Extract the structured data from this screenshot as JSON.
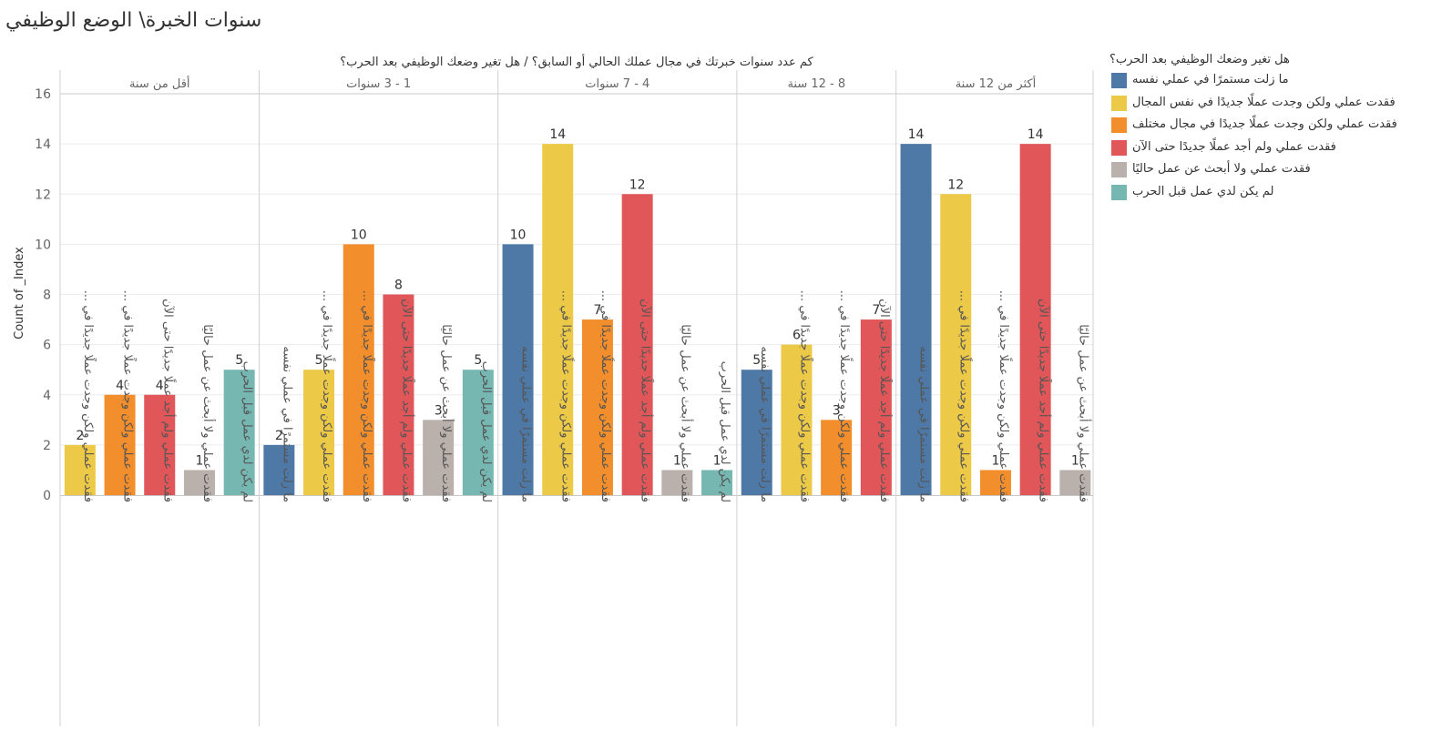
{
  "title": "سنوات الخبرة\\ الوضع الوظيفي",
  "chart_data": {
    "type": "bar",
    "title": "كم عدد سنوات خبرتك في مجال عملك الحالي أو السابق؟  /  هل تغير وضعك الوظيفي بعد الحرب؟",
    "ylabel": "Count of _Index",
    "ylim": [
      0,
      16
    ],
    "yticks": [
      0,
      2,
      4,
      6,
      8,
      10,
      12,
      14,
      16
    ],
    "grid": true,
    "legend_title": "هل تغير وضعك الوظيفي بعد الحرب؟",
    "legend_position": "right",
    "series": [
      {
        "name": "ما زلت مستمرًا في عملي نفسه",
        "color": "#4e79a7"
      },
      {
        "name": "فقدت عملي ولكن وجدت عملًا جديدًا في نفس المجال",
        "color": "#edc948"
      },
      {
        "name": "فقدت عملي ولكن وجدت عملًا جديدًا في مجال مختلف",
        "color": "#f28e2b"
      },
      {
        "name": "فقدت عملي ولم أجد عملًا جديدًا حتى الآن",
        "color": "#e15759"
      },
      {
        "name": "فقدت عملي ولا أبحث عن عمل حاليًا",
        "color": "#bab0ac"
      },
      {
        "name": "لم يكن لدي عمل قبل الحرب",
        "color": "#76b7b2"
      }
    ],
    "groups": [
      {
        "name": "أقل من سنة",
        "bars": [
          {
            "label": "فقدت عملي ولكن وجدت عملًا جديدًا في ...",
            "series": 1,
            "value": 2
          },
          {
            "label": "فقدت عملي ولكن وجدت عملًا جديدًا في ...",
            "series": 2,
            "value": 4
          },
          {
            "label": "فقدت عملي ولم أجد عملًا جديدًا حتى الآن",
            "series": 3,
            "value": 4
          },
          {
            "label": "فقدت عملي ولا أبحث عن عمل حاليًا",
            "series": 4,
            "value": 1
          },
          {
            "label": "لم يكن لدي عمل قبل الحرب",
            "series": 5,
            "value": 5
          }
        ]
      },
      {
        "name": "1 - 3 سنوات",
        "bars": [
          {
            "label": "ما زلت مستمرًا في عملي نفسه",
            "series": 0,
            "value": 2
          },
          {
            "label": "فقدت عملي ولكن وجدت عملًا جديدًا في ...",
            "series": 1,
            "value": 5
          },
          {
            "label": "فقدت عملي ولكن وجدت عملًا جديدًا في ...",
            "series": 2,
            "value": 10
          },
          {
            "label": "فقدت عملي ولم أجد عملًا جديدًا حتى الآن",
            "series": 3,
            "value": 8
          },
          {
            "label": "فقدت عملي ولا أبحث عن عمل حاليًا",
            "series": 4,
            "value": 3
          },
          {
            "label": "لم يكن لدي عمل قبل الحرب",
            "series": 5,
            "value": 5
          }
        ]
      },
      {
        "name": "4 - 7 سنوات",
        "bars": [
          {
            "label": "ما زلت مستمرًا في عملي نفسه",
            "series": 0,
            "value": 10
          },
          {
            "label": "فقدت عملي ولكن وجدت عملًا جديدًا في ...",
            "series": 1,
            "value": 14
          },
          {
            "label": "فقدت عملي ولكن وجدت عملًا جديدًا في ...",
            "series": 2,
            "value": 7
          },
          {
            "label": "فقدت عملي ولم أجد عملًا جديدًا حتى الآن",
            "series": 3,
            "value": 12
          },
          {
            "label": "فقدت عملي ولا أبحث عن عمل حاليًا",
            "series": 4,
            "value": 1
          },
          {
            "label": "لم يكن لدي عمل قبل الحرب",
            "series": 5,
            "value": 1
          }
        ]
      },
      {
        "name": "8 - 12 سنة",
        "bars": [
          {
            "label": "ما زلت مستمرًا في عملي نفسه",
            "series": 0,
            "value": 5
          },
          {
            "label": "فقدت عملي ولكن وجدت عملًا جديدًا في ...",
            "series": 1,
            "value": 6
          },
          {
            "label": "فقدت عملي ولكن وجدت عملًا جديدًا في ...",
            "series": 2,
            "value": 3
          },
          {
            "label": "فقدت عملي ولم أجد عملًا جديدًا حتى الآن",
            "series": 3,
            "value": 7
          }
        ]
      },
      {
        "name": "أكثر من 12 سنة",
        "bars": [
          {
            "label": "ما زلت مستمرًا في عملي نفسه",
            "series": 0,
            "value": 14
          },
          {
            "label": "فقدت عملي ولكن وجدت عملًا جديدًا في ...",
            "series": 1,
            "value": 12
          },
          {
            "label": "فقدت عملي ولكن وجدت عملًا جديدًا في ...",
            "series": 2,
            "value": 1
          },
          {
            "label": "فقدت عملي ولم أجد عملًا جديدًا حتى الآن",
            "series": 3,
            "value": 14
          },
          {
            "label": "فقدت عملي ولا أبحث عن عمل حاليًا",
            "series": 4,
            "value": 1
          }
        ]
      }
    ]
  }
}
